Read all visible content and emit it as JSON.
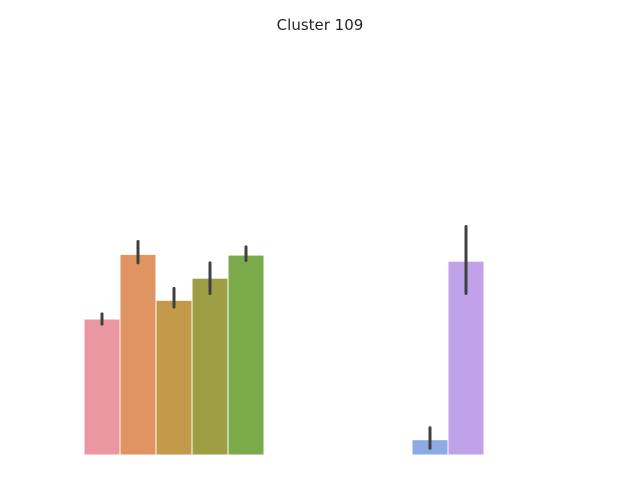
{
  "chart_data": {
    "type": "bar",
    "title": "Cluster 109",
    "xlabel": "",
    "ylabel": "",
    "grid": false,
    "axes_visible": false,
    "ylim": [
      0,
      1.0
    ],
    "groups": [
      {
        "bars": [
          {
            "value": 0.4,
            "ci": [
              0.385,
              0.415
            ],
            "color": "#eb97a1"
          },
          {
            "value": 0.59,
            "ci": [
              0.565,
              0.628
            ],
            "color": "#e09462"
          },
          {
            "value": 0.455,
            "ci": [
              0.435,
              0.49
            ],
            "color": "#c29a4a"
          },
          {
            "value": 0.52,
            "ci": [
              0.475,
              0.565
            ],
            "color": "#9e9f45"
          },
          {
            "value": 0.588,
            "ci": [
              0.572,
              0.612
            ],
            "color": "#7aaa4a"
          }
        ]
      },
      {
        "bars": [
          {
            "value": 0.045,
            "ci": [
              0.02,
              0.08
            ],
            "color": "#8eaae4"
          },
          {
            "value": 0.57,
            "ci": [
              0.475,
              0.672
            ],
            "color": "#c0a2ea"
          }
        ]
      }
    ]
  }
}
